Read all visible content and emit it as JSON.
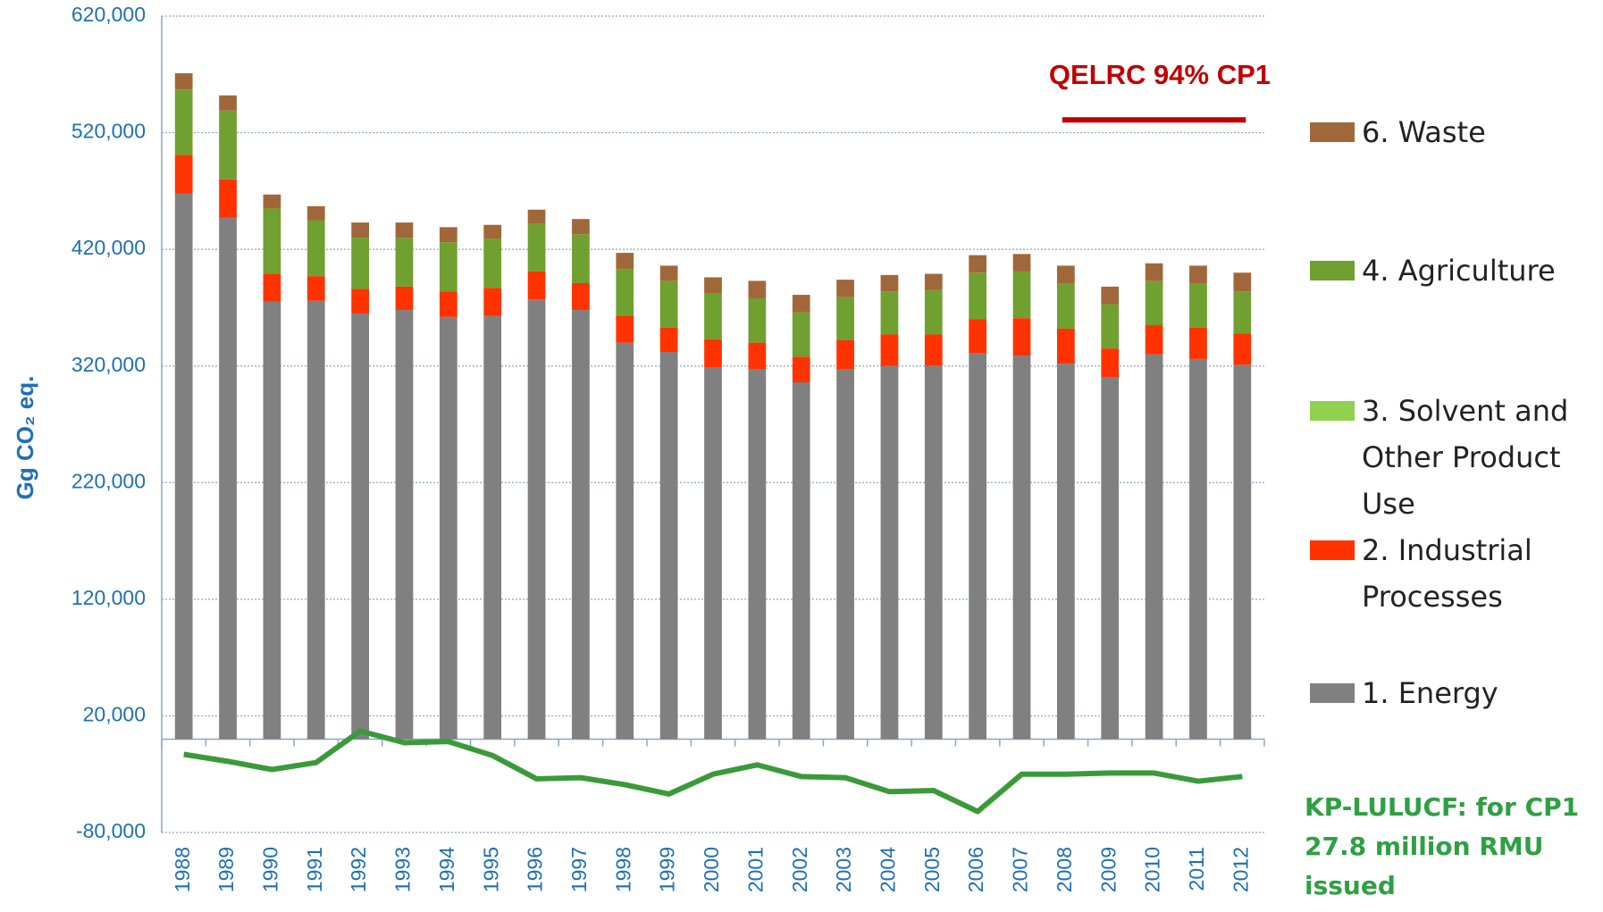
{
  "chart_data": {
    "type": "bar",
    "y_label": "Gg CO₂ eq.",
    "categories": [
      "1988",
      "1989",
      "1990",
      "1991",
      "1992",
      "1993",
      "1994",
      "1995",
      "1996",
      "1997",
      "1998",
      "1999",
      "2000",
      "2001",
      "2002",
      "2003",
      "2004",
      "2005",
      "2006",
      "2007",
      "2008",
      "2009",
      "2010",
      "2011",
      "2012"
    ],
    "series": [
      {
        "name": "1.  Energy",
        "color": "#808080",
        "values": [
          468000,
          447000,
          375000,
          376000,
          365000,
          368000,
          362000,
          363000,
          377000,
          368000,
          340000,
          332000,
          319000,
          317000,
          306000,
          317000,
          320000,
          320000,
          331000,
          329000,
          322000,
          310000,
          330000,
          326000,
          321000
        ]
      },
      {
        "name": "2.  Industrial Processes",
        "color": "#ff3300",
        "values": [
          33000,
          33000,
          24000,
          21000,
          21000,
          20000,
          22000,
          24000,
          24000,
          23000,
          23000,
          21000,
          24000,
          23000,
          22000,
          25000,
          27000,
          27000,
          29000,
          32000,
          30000,
          25000,
          25000,
          27000,
          27000
        ]
      },
      {
        "name": "3.  Solvent and Other Product Use",
        "color": "#92d050",
        "values": [
          0,
          0,
          0,
          0,
          0,
          0,
          0,
          0,
          0,
          0,
          0,
          0,
          0,
          0,
          0,
          0,
          0,
          0,
          0,
          0,
          0,
          0,
          0,
          0,
          0
        ]
      },
      {
        "name": "4.  Agriculture",
        "color": "#70a030",
        "values": [
          56000,
          59000,
          56000,
          48000,
          44000,
          42000,
          42000,
          42000,
          41000,
          42000,
          40000,
          40000,
          39000,
          38000,
          38000,
          37000,
          37000,
          38000,
          40000,
          40000,
          39000,
          38000,
          38000,
          38000,
          36000
        ]
      },
      {
        "name": "6.  Waste",
        "color": "#a0683a",
        "values": [
          14000,
          13000,
          12000,
          12000,
          13000,
          13000,
          13000,
          12000,
          12000,
          13000,
          14000,
          13000,
          14000,
          15000,
          15000,
          15000,
          14000,
          14000,
          15000,
          15000,
          15000,
          15000,
          15000,
          15000,
          16000
        ]
      }
    ],
    "line": {
      "color": "#3a9a3a",
      "values": [
        -13000,
        -19000,
        -26000,
        -20000,
        7000,
        -3000,
        -2000,
        -14000,
        -34000,
        -33000,
        -39000,
        -47000,
        -30000,
        -22000,
        -32000,
        -33000,
        -45000,
        -44000,
        -62000,
        -30000,
        -30000,
        -29000,
        -29000,
        -36000,
        -32000
      ]
    },
    "qelrc": {
      "label": "QELRC 94% CP1",
      "value": 531000,
      "from": "2008",
      "to": "2012",
      "color": "#c00000"
    },
    "note": "KP-LULUCF: for  CP1 27.8 million RMU issued",
    "ylim": [
      -80000,
      620000
    ],
    "yticks": [
      {
        "value": -80000,
        "label": "-80,000"
      },
      {
        "value": 20000,
        "label": "20,000"
      },
      {
        "value": 120000,
        "label": "120,000"
      },
      {
        "value": 220000,
        "label": "220,000"
      },
      {
        "value": 320000,
        "label": "320,000"
      },
      {
        "value": 420000,
        "label": "420,000"
      },
      {
        "value": 520000,
        "label": "520,000"
      },
      {
        "value": 620000,
        "label": "620,000"
      }
    ],
    "grid": true
  }
}
